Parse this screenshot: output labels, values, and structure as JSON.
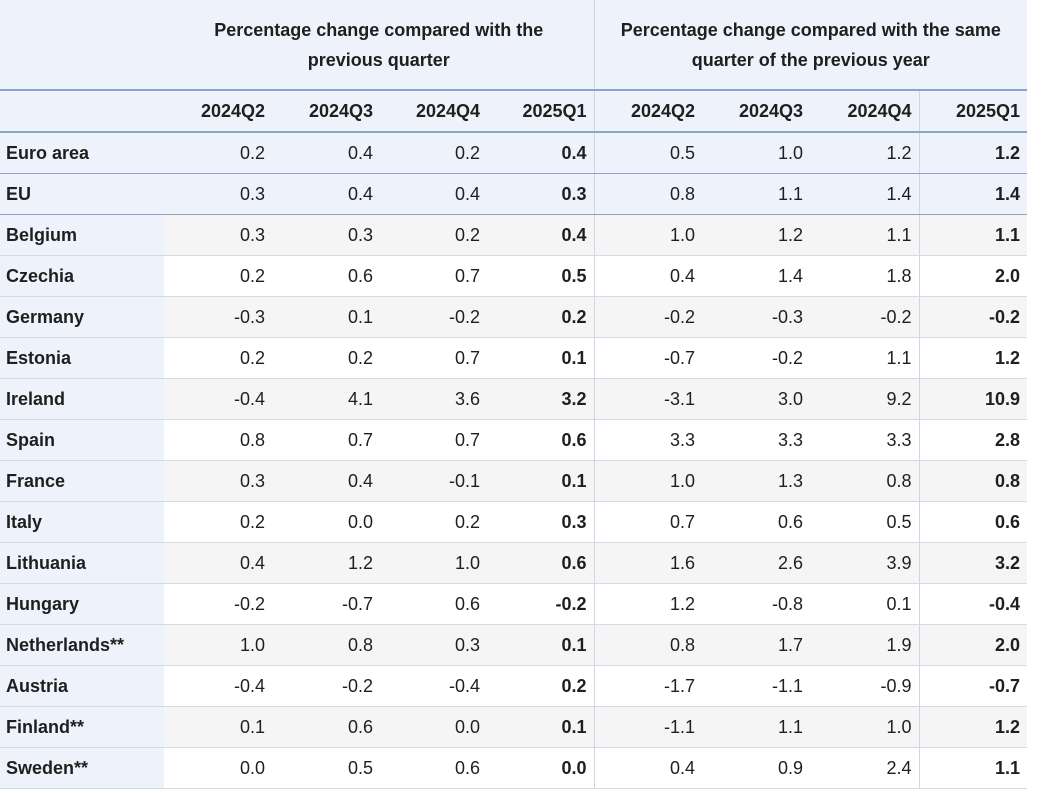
{
  "header": {
    "group_qoq": "Percentage change compared with the previous quarter",
    "group_yoy": "Percentage change compared with the same quarter of the previous year",
    "periods": [
      "2024Q2",
      "2024Q3",
      "2024Q4",
      "2025Q1",
      "2024Q2",
      "2024Q3",
      "2024Q4",
      "2025Q1"
    ]
  },
  "rows": [
    {
      "name": "Euro area",
      "v": [
        "0.2",
        "0.4",
        "0.2",
        "0.4",
        "0.5",
        "1.0",
        "1.2",
        "1.2"
      ]
    },
    {
      "name": "EU",
      "v": [
        "0.3",
        "0.4",
        "0.4",
        "0.3",
        "0.8",
        "1.1",
        "1.4",
        "1.4"
      ]
    },
    {
      "name": "Belgium",
      "v": [
        "0.3",
        "0.3",
        "0.2",
        "0.4",
        "1.0",
        "1.2",
        "1.1",
        "1.1"
      ]
    },
    {
      "name": "Czechia",
      "v": [
        "0.2",
        "0.6",
        "0.7",
        "0.5",
        "0.4",
        "1.4",
        "1.8",
        "2.0"
      ]
    },
    {
      "name": "Germany",
      "v": [
        "-0.3",
        "0.1",
        "-0.2",
        "0.2",
        "-0.2",
        "-0.3",
        "-0.2",
        "-0.2"
      ]
    },
    {
      "name": "Estonia",
      "v": [
        "0.2",
        "0.2",
        "0.7",
        "0.1",
        "-0.7",
        "-0.2",
        "1.1",
        "1.2"
      ]
    },
    {
      "name": "Ireland",
      "v": [
        "-0.4",
        "4.1",
        "3.6",
        "3.2",
        "-3.1",
        "3.0",
        "9.2",
        "10.9"
      ]
    },
    {
      "name": "Spain",
      "v": [
        "0.8",
        "0.7",
        "0.7",
        "0.6",
        "3.3",
        "3.3",
        "3.3",
        "2.8"
      ]
    },
    {
      "name": "France",
      "v": [
        "0.3",
        "0.4",
        "-0.1",
        "0.1",
        "1.0",
        "1.3",
        "0.8",
        "0.8"
      ]
    },
    {
      "name": "Italy",
      "v": [
        "0.2",
        "0.0",
        "0.2",
        "0.3",
        "0.7",
        "0.6",
        "0.5",
        "0.6"
      ]
    },
    {
      "name": "Lithuania",
      "v": [
        "0.4",
        "1.2",
        "1.0",
        "0.6",
        "1.6",
        "2.6",
        "3.9",
        "3.2"
      ]
    },
    {
      "name": "Hungary",
      "v": [
        "-0.2",
        "-0.7",
        "0.6",
        "-0.2",
        "1.2",
        "-0.8",
        "0.1",
        "-0.4"
      ]
    },
    {
      "name": "Netherlands**",
      "v": [
        "1.0",
        "0.8",
        "0.3",
        "0.1",
        "0.8",
        "1.7",
        "1.9",
        "2.0"
      ]
    },
    {
      "name": "Austria",
      "v": [
        "-0.4",
        "-0.2",
        "-0.4",
        "0.2",
        "-1.7",
        "-1.1",
        "-0.9",
        "-0.7"
      ]
    },
    {
      "name": "Finland**",
      "v": [
        "0.1",
        "0.6",
        "0.0",
        "0.1",
        "-1.1",
        "1.1",
        "1.0",
        "1.2"
      ]
    },
    {
      "name": "Sweden**",
      "v": [
        "0.0",
        "0.5",
        "0.6",
        "0.0",
        "0.4",
        "0.9",
        "2.4",
        "1.1"
      ]
    }
  ]
}
